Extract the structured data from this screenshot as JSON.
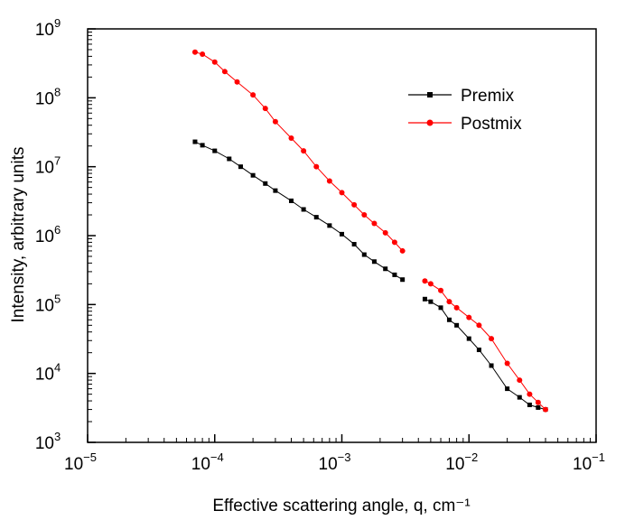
{
  "chart_data": {
    "type": "scatter",
    "title": "",
    "xlabel": "Effective scattering angle, q, cm⁻¹",
    "ylabel": "Intensity, arbitrary units",
    "xscale": "log",
    "yscale": "log",
    "xlim": [
      1e-05,
      0.1
    ],
    "ylim": [
      1000.0,
      1000000000.0
    ],
    "xticks": [
      {
        "value": 1e-05,
        "base": "10",
        "exp": "−5"
      },
      {
        "value": 0.0001,
        "base": "10",
        "exp": "−4"
      },
      {
        "value": 0.001,
        "base": "10",
        "exp": "−3"
      },
      {
        "value": 0.01,
        "base": "10",
        "exp": "−2"
      },
      {
        "value": 0.1,
        "base": "10",
        "exp": "−1"
      }
    ],
    "yticks": [
      {
        "value": 1000.0,
        "base": "10",
        "exp": "3"
      },
      {
        "value": 10000.0,
        "base": "10",
        "exp": "4"
      },
      {
        "value": 100000.0,
        "base": "10",
        "exp": "5"
      },
      {
        "value": 1000000.0,
        "base": "10",
        "exp": "6"
      },
      {
        "value": 10000000.0,
        "base": "10",
        "exp": "7"
      },
      {
        "value": 100000000.0,
        "base": "10",
        "exp": "8"
      },
      {
        "value": 1000000000.0,
        "base": "10",
        "exp": "9"
      }
    ],
    "grid": false,
    "legend_position": "top-right",
    "series": [
      {
        "name": "Premix",
        "color": "#000000",
        "marker": "square",
        "points": [
          [
            7e-05,
            23000000.0
          ],
          [
            8e-05,
            20500000.0
          ],
          [
            0.0001,
            17000000.0
          ],
          [
            0.00013,
            13000000.0
          ],
          [
            0.00016,
            10000000.0
          ],
          [
            0.0002,
            7500000.0
          ],
          [
            0.00025,
            5700000.0
          ],
          [
            0.0003,
            4500000.0
          ],
          [
            0.0004,
            3200000.0
          ],
          [
            0.0005,
            2400000.0
          ],
          [
            0.00063,
            1850000.0
          ],
          [
            0.0008,
            1400000.0
          ],
          [
            0.001,
            1050000.0
          ],
          [
            0.00125,
            750000.0
          ],
          [
            0.0015,
            530000.0
          ],
          [
            0.0018,
            420000.0
          ],
          [
            0.0022,
            330000.0
          ],
          [
            0.0026,
            270000.0
          ],
          [
            0.003,
            230000.0
          ],
          [
            0.0045,
            120000.0
          ],
          [
            0.005,
            110000.0
          ],
          [
            0.006,
            90000.0
          ],
          [
            0.007,
            60000.0
          ],
          [
            0.008,
            50000.0
          ],
          [
            0.01,
            32000.0
          ],
          [
            0.012,
            22000.0
          ],
          [
            0.015,
            13000.0
          ],
          [
            0.02,
            6000.0
          ],
          [
            0.025,
            4500.0
          ],
          [
            0.03,
            3500.0
          ],
          [
            0.035,
            3200.0
          ],
          [
            0.04,
            3000.0
          ]
        ]
      },
      {
        "name": "Postmix",
        "color": "#ff0000",
        "marker": "circle",
        "points": [
          [
            7e-05,
            460000000.0
          ],
          [
            8e-05,
            430000000.0
          ],
          [
            0.0001,
            330000000.0
          ],
          [
            0.00012,
            240000000.0
          ],
          [
            0.00015,
            170000000.0
          ],
          [
            0.0002,
            110000000.0
          ],
          [
            0.00025,
            70000000.0
          ],
          [
            0.0003,
            45000000.0
          ],
          [
            0.0004,
            26000000.0
          ],
          [
            0.0005,
            17000000.0
          ],
          [
            0.00063,
            10000000.0
          ],
          [
            0.0008,
            6200000.0
          ],
          [
            0.001,
            4200000.0
          ],
          [
            0.00125,
            2800000.0
          ],
          [
            0.0015,
            2000000.0
          ],
          [
            0.0018,
            1500000.0
          ],
          [
            0.0022,
            1100000.0
          ],
          [
            0.0026,
            800000.0
          ],
          [
            0.003,
            600000.0
          ],
          [
            0.0045,
            220000.0
          ],
          [
            0.005,
            200000.0
          ],
          [
            0.006,
            160000.0
          ],
          [
            0.007,
            110000.0
          ],
          [
            0.008,
            90000.0
          ],
          [
            0.01,
            65000.0
          ],
          [
            0.012,
            50000.0
          ],
          [
            0.015,
            32000.0
          ],
          [
            0.02,
            14000.0
          ],
          [
            0.025,
            8000.0
          ],
          [
            0.03,
            5000.0
          ],
          [
            0.035,
            3800.0
          ],
          [
            0.04,
            3000.0
          ]
        ]
      }
    ]
  }
}
